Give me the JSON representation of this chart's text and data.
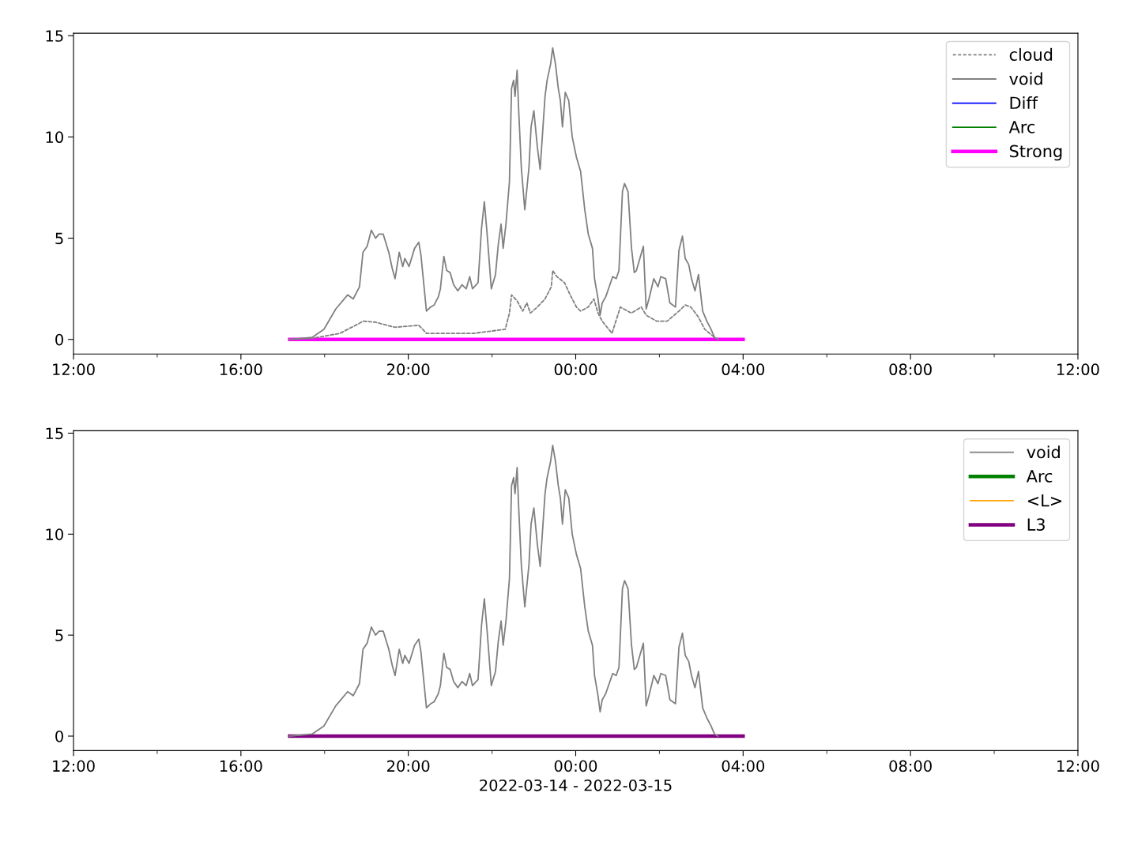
{
  "chart_data": [
    {
      "type": "line",
      "x": [
        "2022-03-14T17:10",
        "2022-03-14T17:42",
        "2022-03-14T17:59",
        "2022-03-14T18:16",
        "2022-03-14T18:33",
        "2022-03-14T18:41",
        "2022-03-14T18:50",
        "2022-03-14T18:55",
        "2022-03-14T19:01",
        "2022-03-14T19:07",
        "2022-03-14T19:13",
        "2022-03-14T19:18",
        "2022-03-14T19:24",
        "2022-03-14T19:32",
        "2022-03-14T19:37",
        "2022-03-14T19:41",
        "2022-03-14T19:47",
        "2022-03-14T19:52",
        "2022-03-14T19:55",
        "2022-03-14T20:01",
        "2022-03-14T20:09",
        "2022-03-14T20:15",
        "2022-03-14T20:18",
        "2022-03-14T20:26",
        "2022-03-14T20:32",
        "2022-03-14T20:37",
        "2022-03-14T20:43",
        "2022-03-14T20:46",
        "2022-03-14T20:49",
        "2022-03-14T20:51",
        "2022-03-14T20:55",
        "2022-03-14T21:00",
        "2022-03-14T21:05",
        "2022-03-14T21:11",
        "2022-03-14T21:17",
        "2022-03-14T21:23",
        "2022-03-14T21:28",
        "2022-03-14T21:32",
        "2022-03-14T21:40",
        "2022-03-14T21:45",
        "2022-03-14T21:49",
        "2022-03-14T21:53",
        "2022-03-14T21:59",
        "2022-03-14T22:05",
        "2022-03-14T22:09",
        "2022-03-14T22:13",
        "2022-03-14T22:16",
        "2022-03-14T22:20",
        "2022-03-14T22:25",
        "2022-03-14T22:28",
        "2022-03-14T22:31",
        "2022-03-14T22:33",
        "2022-03-14T22:36",
        "2022-03-14T22:38",
        "2022-03-14T22:42",
        "2022-03-14T22:47",
        "2022-03-14T22:53",
        "2022-03-14T22:56",
        "2022-03-14T23:00",
        "2022-03-14T23:05",
        "2022-03-14T23:09",
        "2022-03-14T23:16",
        "2022-03-14T23:19",
        "2022-03-14T23:24",
        "2022-03-14T23:27",
        "2022-03-14T23:31",
        "2022-03-14T23:35",
        "2022-03-14T23:38",
        "2022-03-14T23:41",
        "2022-03-14T23:45",
        "2022-03-14T23:50",
        "2022-03-14T23:55",
        "2022-03-15T00:01",
        "2022-03-15T00:07",
        "2022-03-15T00:13",
        "2022-03-15T00:18",
        "2022-03-15T00:24",
        "2022-03-15T00:27",
        "2022-03-15T00:32",
        "2022-03-15T00:35",
        "2022-03-15T00:38",
        "2022-03-15T00:43",
        "2022-03-15T00:49",
        "2022-03-15T00:53",
        "2022-03-15T00:58",
        "2022-03-15T01:02",
        "2022-03-15T01:07",
        "2022-03-15T01:10",
        "2022-03-15T01:15",
        "2022-03-15T01:20",
        "2022-03-15T01:24",
        "2022-03-15T01:27",
        "2022-03-15T01:32",
        "2022-03-15T01:37",
        "2022-03-15T01:41",
        "2022-03-15T01:45",
        "2022-03-15T01:52",
        "2022-03-15T01:58",
        "2022-03-15T02:02",
        "2022-03-15T02:09",
        "2022-03-15T02:15",
        "2022-03-15T02:23",
        "2022-03-15T02:28",
        "2022-03-15T02:33",
        "2022-03-15T02:37",
        "2022-03-15T02:42",
        "2022-03-15T02:46",
        "2022-03-15T02:51",
        "2022-03-15T02:56",
        "2022-03-15T03:02",
        "2022-03-15T03:08",
        "2022-03-15T03:14",
        "2022-03-15T03:19",
        "2022-03-15T03:24"
      ],
      "series": [
        {
          "name": "cloud",
          "color": "#808080",
          "line_style": "dashed",
          "x": [
            "2022-03-14T17:10",
            "2022-03-14T17:42",
            "2022-03-14T18:22",
            "2022-03-14T18:50",
            "2022-03-14T18:55",
            "2022-03-14T19:13",
            "2022-03-14T19:29",
            "2022-03-14T19:41",
            "2022-03-14T20:15",
            "2022-03-14T20:26",
            "2022-03-14T20:49",
            "2022-03-14T21:34",
            "2022-03-14T22:19",
            "2022-03-14T22:25",
            "2022-03-14T22:28",
            "2022-03-14T22:36",
            "2022-03-14T22:44",
            "2022-03-14T22:50",
            "2022-03-14T22:55",
            "2022-03-14T23:05",
            "2022-03-14T23:16",
            "2022-03-14T23:25",
            "2022-03-14T23:27",
            "2022-03-14T23:33",
            "2022-03-14T23:44",
            "2022-03-14T23:52",
            "2022-03-15T00:01",
            "2022-03-15T00:07",
            "2022-03-15T00:18",
            "2022-03-15T00:26",
            "2022-03-15T00:32",
            "2022-03-15T00:38",
            "2022-03-15T00:52",
            "2022-03-15T01:04",
            "2022-03-15T01:09",
            "2022-03-15T01:20",
            "2022-03-15T01:34",
            "2022-03-15T01:41",
            "2022-03-15T01:56",
            "2022-03-15T02:11",
            "2022-03-15T02:28",
            "2022-03-15T02:37",
            "2022-03-15T02:45",
            "2022-03-15T02:56",
            "2022-03-15T03:05",
            "2022-03-15T03:19",
            "2022-03-15T03:24"
          ],
          "values": [
            0,
            0.05,
            0.3,
            0.8,
            0.9,
            0.85,
            0.7,
            0.6,
            0.7,
            0.3,
            0.3,
            0.3,
            0.5,
            1.3,
            2.2,
            1.9,
            1.4,
            1.8,
            1.3,
            1.6,
            2.0,
            2.6,
            3.4,
            3.1,
            2.8,
            2.2,
            1.6,
            1.4,
            1.6,
            2.0,
            1.3,
            0.9,
            0.3,
            1.6,
            1.5,
            1.3,
            1.6,
            1.2,
            0.9,
            0.9,
            1.4,
            1.7,
            1.6,
            1.1,
            0.5,
            0.1,
            0
          ]
        },
        {
          "name": "void",
          "color": "#808080",
          "line_style": "solid",
          "values": [
            0,
            0.1,
            0.5,
            1.5,
            2.2,
            2.0,
            2.6,
            4.3,
            4.6,
            5.4,
            5.0,
            5.2,
            5.2,
            4.3,
            3.5,
            3.0,
            4.3,
            3.6,
            4.0,
            3.6,
            4.5,
            4.8,
            4.2,
            1.4,
            1.6,
            1.7,
            2.1,
            2.5,
            3.5,
            4.1,
            3.4,
            3.3,
            2.7,
            2.4,
            2.7,
            2.5,
            3.1,
            2.5,
            2.8,
            5.5,
            6.8,
            5.2,
            2.5,
            3.2,
            4.7,
            5.7,
            4.5,
            5.7,
            7.8,
            12.4,
            12.8,
            12.0,
            13.3,
            11.5,
            8.5,
            6.4,
            8.5,
            10.5,
            11.3,
            9.5,
            8.4,
            12.0,
            12.8,
            13.6,
            14.4,
            13.6,
            12.4,
            11.8,
            10.5,
            12.2,
            11.8,
            10.0,
            9.0,
            8.3,
            6.4,
            5.2,
            4.5,
            3.0,
            2.0,
            1.2,
            1.8,
            2.1,
            2.7,
            3.1,
            3.0,
            3.4,
            7.3,
            7.7,
            7.3,
            4.5,
            3.3,
            3.4,
            4.0,
            4.6,
            1.5,
            2.0,
            3.0,
            2.6,
            3.1,
            3.0,
            1.8,
            1.6,
            4.4,
            5.1,
            4.0,
            3.7,
            3.0,
            2.4,
            3.2,
            1.4,
            0.9,
            0.5,
            0.1,
            0
          ]
        },
        {
          "name": "Diff",
          "color": "#0000ff",
          "line_style": "solid",
          "values": [
            null,
            null,
            null,
            null,
            null,
            null,
            null,
            null,
            null,
            null,
            null,
            null,
            null,
            null,
            null,
            null,
            null,
            null,
            null,
            null,
            null,
            null,
            null,
            null,
            null,
            null,
            null,
            null,
            null,
            null,
            null,
            null,
            null,
            null,
            null,
            null,
            null,
            null,
            null,
            null,
            null,
            null,
            null,
            null,
            null,
            null,
            null,
            null,
            null,
            null,
            null,
            null,
            null,
            null,
            null,
            null,
            null,
            null,
            null,
            null,
            null,
            null,
            null,
            null,
            null,
            null,
            null,
            null,
            null,
            null,
            null,
            null,
            null,
            null,
            null,
            null,
            null,
            null,
            null,
            null,
            null,
            null,
            null,
            null,
            null,
            null,
            null,
            null,
            null,
            null,
            null,
            null,
            null,
            null,
            null,
            null,
            null,
            null,
            null,
            null,
            null,
            null,
            null,
            null,
            null,
            null,
            null,
            null,
            null,
            null,
            null,
            null,
            null,
            null
          ]
        },
        {
          "name": "Arc",
          "color": "#008000",
          "line_style": "solid",
          "values": [
            null,
            null,
            null,
            null,
            null,
            null,
            null,
            null,
            null,
            null,
            null,
            null,
            null,
            null,
            null,
            null,
            null,
            null,
            null,
            null,
            null,
            null,
            null,
            null,
            null,
            null,
            null,
            null,
            null,
            null,
            null,
            null,
            null,
            null,
            null,
            null,
            null,
            null,
            null,
            null,
            null,
            null,
            null,
            null,
            null,
            null,
            null,
            null,
            null,
            null,
            null,
            null,
            null,
            null,
            null,
            null,
            null,
            null,
            null,
            null,
            null,
            null,
            null,
            null,
            null,
            null,
            null,
            null,
            null,
            null,
            null,
            null,
            null,
            null,
            null,
            null,
            null,
            null,
            null,
            null,
            null,
            null,
            null,
            null,
            null,
            null,
            null,
            null,
            null,
            null,
            null,
            null,
            null,
            null,
            null,
            null,
            null,
            null,
            null,
            null,
            null,
            null,
            null,
            null,
            null,
            null,
            null,
            null,
            null,
            null,
            null,
            null,
            null,
            null
          ]
        },
        {
          "name": "Strong",
          "color": "#ff00ff",
          "line_style": "solid",
          "x": [
            "2022-03-14T17:10",
            "2022-03-15T04:00"
          ],
          "values": [
            0,
            0
          ]
        }
      ],
      "xlim": [
        "2022-03-14T12:00",
        "2022-03-15T12:00"
      ],
      "xticks": [
        {
          "value": "2022-03-14T12:00",
          "label": "12:00"
        },
        {
          "value": "2022-03-14T14:00",
          "label": null
        },
        {
          "value": "2022-03-14T16:00",
          "label": "16:00"
        },
        {
          "value": "2022-03-14T18:00",
          "label": null
        },
        {
          "value": "2022-03-14T20:00",
          "label": "20:00"
        },
        {
          "value": "2022-03-14T22:00",
          "label": null
        },
        {
          "value": "2022-03-15T00:00",
          "label": "00:00"
        },
        {
          "value": "2022-03-15T02:00",
          "label": null
        },
        {
          "value": "2022-03-15T04:00",
          "label": "04:00"
        },
        {
          "value": "2022-03-15T06:00",
          "label": null
        },
        {
          "value": "2022-03-15T08:00",
          "label": "08:00"
        },
        {
          "value": "2022-03-15T10:00",
          "label": null
        },
        {
          "value": "2022-03-15T12:00",
          "label": "12:00"
        }
      ],
      "ylim": [
        -0.72,
        15.12
      ],
      "yticks": [
        0,
        5,
        10,
        15
      ],
      "legend": "top right",
      "grid": false
    },
    {
      "type": "line",
      "x": [
        "2022-03-14T17:10",
        "2022-03-14T17:42",
        "2022-03-14T17:59",
        "2022-03-14T18:16",
        "2022-03-14T18:33",
        "2022-03-14T18:41",
        "2022-03-14T18:50",
        "2022-03-14T18:55",
        "2022-03-14T19:01",
        "2022-03-14T19:07",
        "2022-03-14T19:13",
        "2022-03-14T19:18",
        "2022-03-14T19:24",
        "2022-03-14T19:32",
        "2022-03-14T19:37",
        "2022-03-14T19:41",
        "2022-03-14T19:47",
        "2022-03-14T19:52",
        "2022-03-14T19:55",
        "2022-03-14T20:01",
        "2022-03-14T20:09",
        "2022-03-14T20:15",
        "2022-03-14T20:18",
        "2022-03-14T20:26",
        "2022-03-14T20:32",
        "2022-03-14T20:37",
        "2022-03-14T20:43",
        "2022-03-14T20:46",
        "2022-03-14T20:49",
        "2022-03-14T20:51",
        "2022-03-14T20:55",
        "2022-03-14T21:00",
        "2022-03-14T21:05",
        "2022-03-14T21:11",
        "2022-03-14T21:17",
        "2022-03-14T21:23",
        "2022-03-14T21:28",
        "2022-03-14T21:32",
        "2022-03-14T21:40",
        "2022-03-14T21:45",
        "2022-03-14T21:49",
        "2022-03-14T21:53",
        "2022-03-14T21:59",
        "2022-03-14T22:05",
        "2022-03-14T22:09",
        "2022-03-14T22:13",
        "2022-03-14T22:16",
        "2022-03-14T22:20",
        "2022-03-14T22:25",
        "2022-03-14T22:28",
        "2022-03-14T22:31",
        "2022-03-14T22:33",
        "2022-03-14T22:36",
        "2022-03-14T22:38",
        "2022-03-14T22:42",
        "2022-03-14T22:47",
        "2022-03-14T22:53",
        "2022-03-14T22:56",
        "2022-03-14T23:00",
        "2022-03-14T23:05",
        "2022-03-14T23:09",
        "2022-03-14T23:16",
        "2022-03-14T23:19",
        "2022-03-14T23:24",
        "2022-03-14T23:27",
        "2022-03-14T23:31",
        "2022-03-14T23:35",
        "2022-03-14T23:38",
        "2022-03-14T23:41",
        "2022-03-14T23:45",
        "2022-03-14T23:50",
        "2022-03-14T23:55",
        "2022-03-15T00:01",
        "2022-03-15T00:07",
        "2022-03-15T00:13",
        "2022-03-15T00:18",
        "2022-03-15T00:24",
        "2022-03-15T00:27",
        "2022-03-15T00:32",
        "2022-03-15T00:35",
        "2022-03-15T00:38",
        "2022-03-15T00:43",
        "2022-03-15T00:49",
        "2022-03-15T00:53",
        "2022-03-15T00:58",
        "2022-03-15T01:02",
        "2022-03-15T01:07",
        "2022-03-15T01:10",
        "2022-03-15T01:15",
        "2022-03-15T01:20",
        "2022-03-15T01:24",
        "2022-03-15T01:27",
        "2022-03-15T01:32",
        "2022-03-15T01:37",
        "2022-03-15T01:41",
        "2022-03-15T01:45",
        "2022-03-15T01:52",
        "2022-03-15T01:58",
        "2022-03-15T02:02",
        "2022-03-15T02:09",
        "2022-03-15T02:15",
        "2022-03-15T02:23",
        "2022-03-15T02:28",
        "2022-03-15T02:33",
        "2022-03-15T02:37",
        "2022-03-15T02:42",
        "2022-03-15T02:46",
        "2022-03-15T02:51",
        "2022-03-15T02:56",
        "2022-03-15T03:02",
        "2022-03-15T03:08",
        "2022-03-15T03:14",
        "2022-03-15T03:19",
        "2022-03-15T03:24"
      ],
      "series": [
        {
          "name": "void",
          "color": "#808080",
          "line_style": "solid",
          "values": [
            0,
            0.1,
            0.5,
            1.5,
            2.2,
            2.0,
            2.6,
            4.3,
            4.6,
            5.4,
            5.0,
            5.2,
            5.2,
            4.3,
            3.5,
            3.0,
            4.3,
            3.6,
            4.0,
            3.6,
            4.5,
            4.8,
            4.2,
            1.4,
            1.6,
            1.7,
            2.1,
            2.5,
            3.5,
            4.1,
            3.4,
            3.3,
            2.7,
            2.4,
            2.7,
            2.5,
            3.1,
            2.5,
            2.8,
            5.5,
            6.8,
            5.2,
            2.5,
            3.2,
            4.7,
            5.7,
            4.5,
            5.7,
            7.8,
            12.4,
            12.8,
            12.0,
            13.3,
            11.5,
            8.5,
            6.4,
            8.5,
            10.5,
            11.3,
            9.5,
            8.4,
            12.0,
            12.8,
            13.6,
            14.4,
            13.6,
            12.4,
            11.8,
            10.5,
            12.2,
            11.8,
            10.0,
            9.0,
            8.3,
            6.4,
            5.2,
            4.5,
            3.0,
            2.0,
            1.2,
            1.8,
            2.1,
            2.7,
            3.1,
            3.0,
            3.4,
            7.3,
            7.7,
            7.3,
            4.5,
            3.3,
            3.4,
            4.0,
            4.6,
            1.5,
            2.0,
            3.0,
            2.6,
            3.1,
            3.0,
            1.8,
            1.6,
            4.4,
            5.1,
            4.0,
            3.7,
            3.0,
            2.4,
            3.2,
            1.4,
            0.9,
            0.5,
            0.1,
            0
          ]
        },
        {
          "name": "Arc",
          "color": "#008000",
          "line_style": "solid",
          "values": [
            null,
            null,
            null,
            null,
            null,
            null,
            null,
            null,
            null,
            null,
            null,
            null,
            null,
            null,
            null,
            null,
            null,
            null,
            null,
            null,
            null,
            null,
            null,
            null,
            null,
            null,
            null,
            null,
            null,
            null,
            null,
            null,
            null,
            null,
            null,
            null,
            null,
            null,
            null,
            null,
            null,
            null,
            null,
            null,
            null,
            null,
            null,
            null,
            null,
            null,
            null,
            null,
            null,
            null,
            null,
            null,
            null,
            null,
            null,
            null,
            null,
            null,
            null,
            null,
            null,
            null,
            null,
            null,
            null,
            null,
            null,
            null,
            null,
            null,
            null,
            null,
            null,
            null,
            null,
            null,
            null,
            null,
            null,
            null,
            null,
            null,
            null,
            null,
            null,
            null,
            null,
            null,
            null,
            null,
            null,
            null,
            null,
            null,
            null,
            null,
            null,
            null,
            null,
            null,
            null,
            null,
            null,
            null,
            null,
            null,
            null,
            null,
            null,
            null
          ]
        },
        {
          "name": "<L>",
          "color": "#ffa500",
          "line_style": "solid",
          "values": [
            null,
            null,
            null,
            null,
            null,
            null,
            null,
            null,
            null,
            null,
            null,
            null,
            null,
            null,
            null,
            null,
            null,
            null,
            null,
            null,
            null,
            null,
            null,
            null,
            null,
            null,
            null,
            null,
            null,
            null,
            null,
            null,
            null,
            null,
            null,
            null,
            null,
            null,
            null,
            null,
            null,
            null,
            null,
            null,
            null,
            null,
            null,
            null,
            null,
            null,
            null,
            null,
            null,
            null,
            null,
            null,
            null,
            null,
            null,
            null,
            null,
            null,
            null,
            null,
            null,
            null,
            null,
            null,
            null,
            null,
            null,
            null,
            null,
            null,
            null,
            null,
            null,
            null,
            null,
            null,
            null,
            null,
            null,
            null,
            null,
            null,
            null,
            null,
            null,
            null,
            null,
            null,
            null,
            null,
            null,
            null,
            null,
            null,
            null,
            null,
            null,
            null,
            null,
            null,
            null,
            null,
            null,
            null,
            null,
            null,
            null,
            null,
            null,
            null
          ]
        },
        {
          "name": "L3",
          "color": "#800080",
          "line_style": "solid",
          "x": [
            "2022-03-14T17:10",
            "2022-03-15T04:00"
          ],
          "values": [
            0,
            0
          ]
        }
      ],
      "xlim": [
        "2022-03-14T12:00",
        "2022-03-15T12:00"
      ],
      "xticks": [
        {
          "value": "2022-03-14T12:00",
          "label": "12:00"
        },
        {
          "value": "2022-03-14T14:00",
          "label": null
        },
        {
          "value": "2022-03-14T16:00",
          "label": "16:00"
        },
        {
          "value": "2022-03-14T18:00",
          "label": null
        },
        {
          "value": "2022-03-14T20:00",
          "label": "20:00"
        },
        {
          "value": "2022-03-14T22:00",
          "label": null
        },
        {
          "value": "2022-03-15T00:00",
          "label": "00:00"
        },
        {
          "value": "2022-03-15T02:00",
          "label": null
        },
        {
          "value": "2022-03-15T04:00",
          "label": "04:00"
        },
        {
          "value": "2022-03-15T06:00",
          "label": null
        },
        {
          "value": "2022-03-15T08:00",
          "label": "08:00"
        },
        {
          "value": "2022-03-15T10:00",
          "label": null
        },
        {
          "value": "2022-03-15T12:00",
          "label": "12:00"
        }
      ],
      "ylim": [
        -0.72,
        15.12
      ],
      "yticks": [
        0,
        5,
        10,
        15
      ],
      "xlabel": "2022-03-14 - 2022-03-15",
      "legend": "top right",
      "grid": false
    }
  ]
}
